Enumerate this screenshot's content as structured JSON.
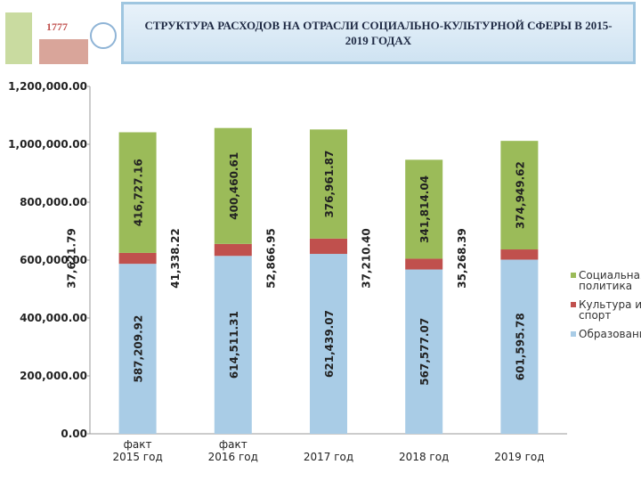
{
  "logo": "1777",
  "chart_data": {
    "type": "stacked_bar",
    "title": "СТРУКТУРА РАСХОДОВ НА ОТРАСЛИ СОЦИАЛЬНО-КУЛЬТУРНОЙ СФЕРЫ В 2015-2019 ГОДАХ",
    "categories": [
      "факт\n2015 год",
      "факт\n2016 год",
      "2017 год",
      "2018 год",
      "2019 год"
    ],
    "series": [
      {
        "name": "Образование",
        "color": "#a9cce6",
        "values": [
          587209.92,
          614511.31,
          621439.07,
          567577.07,
          601595.78
        ],
        "value_labels": [
          "587,209.92",
          "614,511.31",
          "621,439.07",
          "567,577.07",
          "601,595.78"
        ]
      },
      {
        "name": "Культура и спорт",
        "color": "#c0504d",
        "values": [
          37621.79,
          41338.22,
          52866.95,
          37210.4,
          35268.39
        ],
        "value_labels": [
          "37,621.79",
          "41,338.22",
          "52,866.95",
          "37,210.40",
          "35,268.39"
        ]
      },
      {
        "name": "Социальная политика",
        "color": "#9bbb59",
        "values": [
          416727.16,
          400460.61,
          376961.87,
          341814.04,
          374949.62
        ],
        "value_labels": [
          "416,727.16",
          "400,460.61",
          "376,961.87",
          "341,814.04",
          "374,949.62"
        ]
      }
    ],
    "ylim": [
      0,
      1200000
    ],
    "yticks": [
      {
        "value": 0,
        "label": "0.00"
      },
      {
        "value": 200000,
        "label": "200,000.00"
      },
      {
        "value": 400000,
        "label": "400,000.00"
      },
      {
        "value": 600000,
        "label": "600,000.00"
      },
      {
        "value": 800000,
        "label": "800,000.00"
      },
      {
        "value": 1000000,
        "label": "1,000,000.00"
      },
      {
        "value": 1200000,
        "label": "1,200,000.00"
      }
    ],
    "grid": false,
    "legend": "right"
  }
}
